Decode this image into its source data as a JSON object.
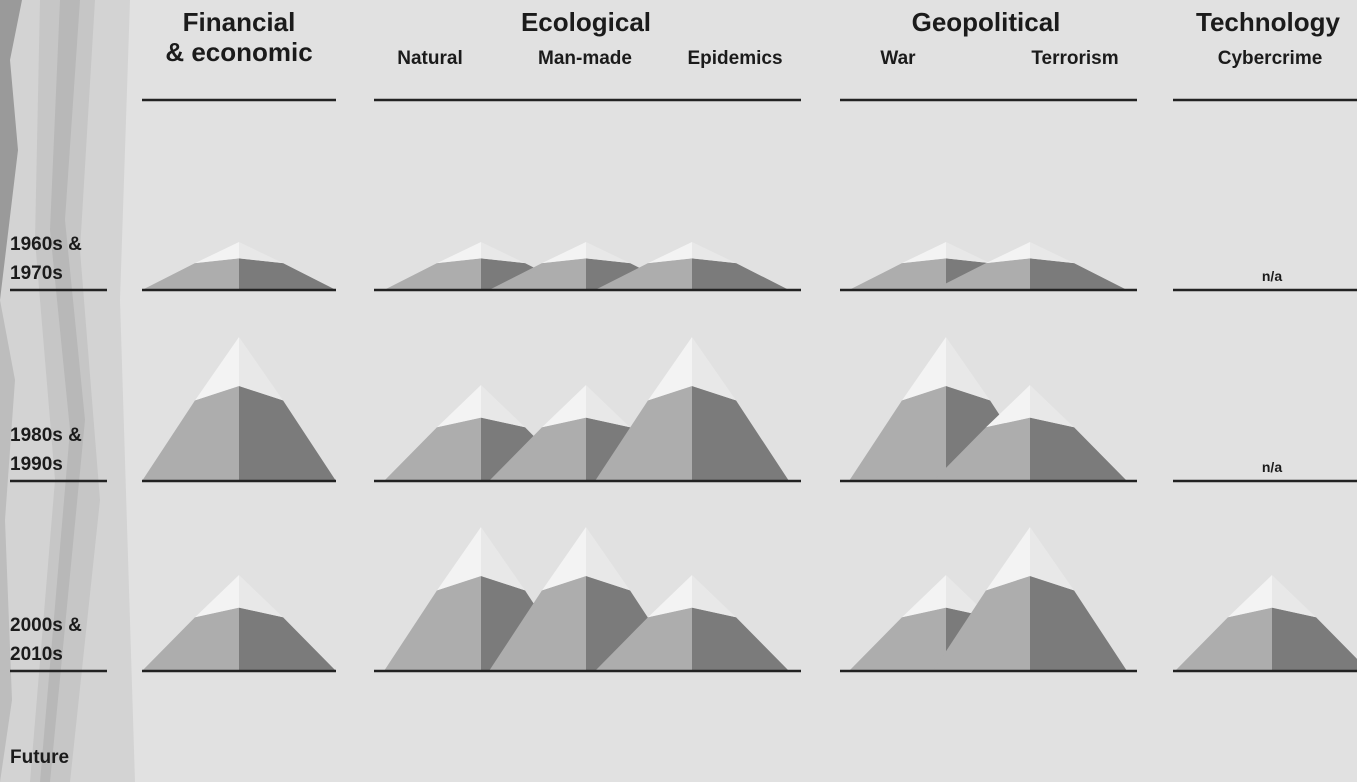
{
  "groups": [
    {
      "title": [
        "Financial",
        "& economic"
      ],
      "subtitles": []
    },
    {
      "title": [
        "Ecological"
      ],
      "subtitles": [
        "Natural",
        "Man-made",
        "Epidemics"
      ]
    },
    {
      "title": [
        "Geopolitical"
      ],
      "subtitles": [
        "War",
        "Terrorism"
      ]
    },
    {
      "title": [
        "Technology"
      ],
      "subtitles": [
        "Cybercrime"
      ]
    }
  ],
  "rows": [
    {
      "label": [
        "1960s &",
        "1970s"
      ],
      "levels": [
        1,
        1,
        1,
        1,
        1,
        1,
        "n/a"
      ]
    },
    {
      "label": [
        "1980s &",
        "1990s"
      ],
      "levels": [
        3,
        2,
        2,
        3,
        3,
        2,
        "n/a"
      ]
    },
    {
      "label": [
        "2000s &",
        "2010s"
      ],
      "levels": [
        2,
        3,
        3,
        2,
        2,
        3,
        2
      ]
    },
    {
      "label": [
        "Future"
      ],
      "levels": []
    }
  ]
}
